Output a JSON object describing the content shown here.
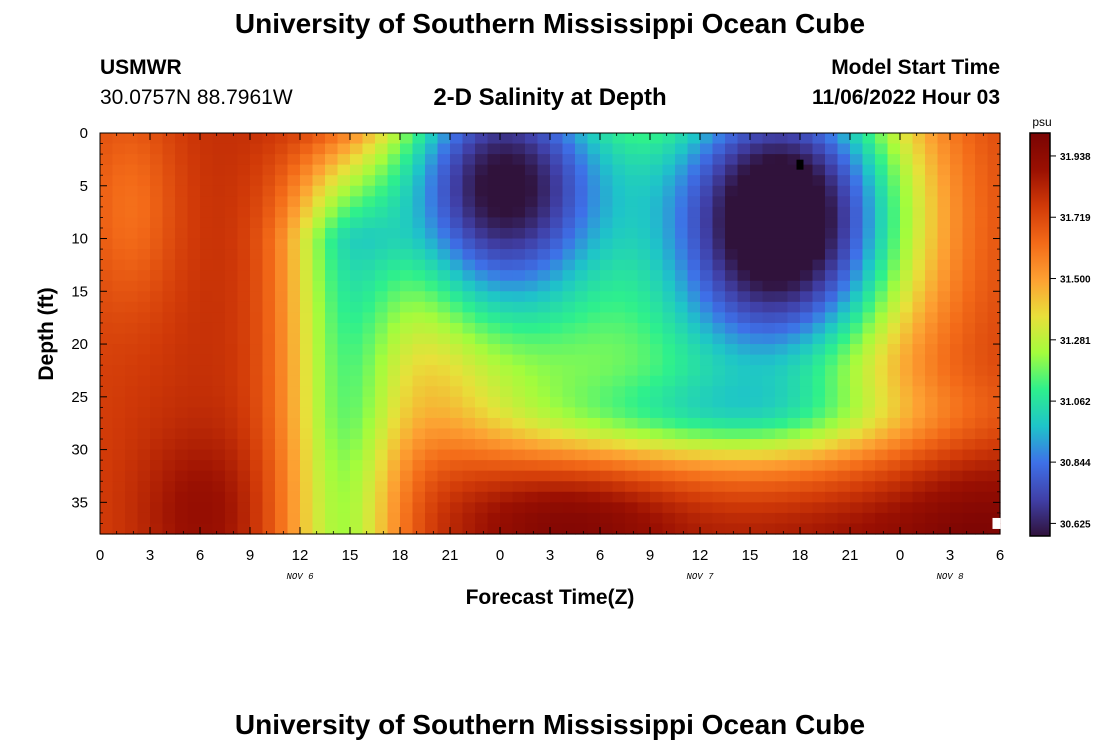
{
  "header": {
    "title": "University of Southern Mississippi Ocean Cube",
    "station": "USMWR",
    "coords": "30.0757N  88.7961W",
    "plot_title": "2-D Salinity at Depth",
    "model_label": "Model Start Time",
    "model_time": "11/06/2022 Hour 03",
    "footer_title": "University of Southern Mississippi Ocean Cube"
  },
  "colors": {
    "scale": [
      "#30123b",
      "#4040a8",
      "#3e70e8",
      "#1ec4c9",
      "#2ef08c",
      "#a4fc3c",
      "#e8e03a",
      "#fda032",
      "#f36a18",
      "#d13a08",
      "#9a1002",
      "#7a0403"
    ]
  },
  "chart_data": {
    "type": "heatmap",
    "title": "2-D Salinity at Depth",
    "xlabel": "Forecast Time(Z)",
    "ylabel": "Depth (ft)",
    "x_ticks": [
      "0",
      "3",
      "6",
      "9",
      "12",
      "15",
      "18",
      "21",
      "0",
      "3",
      "6",
      "9",
      "12",
      "15",
      "18",
      "21",
      "0",
      "3",
      "6"
    ],
    "x_range_hours": [
      0,
      54
    ],
    "y_ticks": [
      "0",
      "5",
      "10",
      "15",
      "20",
      "25",
      "30",
      "35"
    ],
    "y_range": [
      0,
      38
    ],
    "date_labels": [
      {
        "label": "NOV 6",
        "hour": 12
      },
      {
        "label": "NOV 7",
        "hour": 36
      },
      {
        "label": "NOV 8",
        "hour": 51
      }
    ],
    "colorbar": {
      "unit": "psu",
      "min": 30.58,
      "max": 32.02,
      "ticks": [
        "31.938",
        "31.719",
        "31.500",
        "31.281",
        "31.062",
        "30.844",
        "30.625"
      ]
    },
    "markers": [
      {
        "type": "minimum",
        "hour": 42,
        "depth": 3
      },
      {
        "type": "maximum",
        "hour": 54,
        "depth": 37
      }
    ]
  }
}
